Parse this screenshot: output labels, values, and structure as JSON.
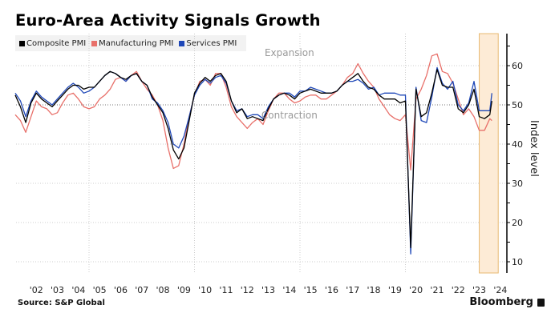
{
  "title": "Euro-Area Activity Signals Growth",
  "source": "Source: S&P Global",
  "brand": "Bloomberg",
  "chart_data": {
    "type": "line",
    "title": "Euro-Area Activity Signals Growth",
    "xlabel": "",
    "ylabel": "Index level",
    "ylim": [
      7,
      68
    ],
    "xlim": [
      2001.5,
      2024.4
    ],
    "yticks": [
      10,
      20,
      30,
      40,
      50,
      60
    ],
    "xtick_labels": [
      "'02",
      "'03",
      "'04",
      "'05",
      "'06",
      "'07",
      "'08",
      "'09",
      "'10",
      "'11",
      "'12",
      "'13",
      "'14",
      "'15",
      "'16",
      "'17",
      "'18",
      "'19",
      "'20",
      "'21",
      "'22",
      "'23",
      "'24"
    ],
    "legend_position": "top-left",
    "reference_line": 50,
    "annotations": [
      {
        "text": "Expansion",
        "x": 2014.5,
        "y": 62.5
      },
      {
        "text": "Contraction",
        "x": 2014.5,
        "y": 46.5
      }
    ],
    "shaded_region": {
      "from": 2023.5,
      "to": 2024.4,
      "color": "#fdebd6",
      "edge": "#e8b972"
    },
    "x": [
      2001.5,
      2001.75,
      2002.0,
      2002.25,
      2002.5,
      2002.75,
      2003.0,
      2003.25,
      2003.5,
      2003.75,
      2004.0,
      2004.25,
      2004.5,
      2004.75,
      2005.0,
      2005.25,
      2005.5,
      2005.75,
      2006.0,
      2006.25,
      2006.5,
      2006.75,
      2007.0,
      2007.25,
      2007.5,
      2007.75,
      2008.0,
      2008.25,
      2008.5,
      2008.75,
      2009.0,
      2009.25,
      2009.5,
      2009.75,
      2010.0,
      2010.25,
      2010.5,
      2010.75,
      2011.0,
      2011.25,
      2011.5,
      2011.75,
      2012.0,
      2012.25,
      2012.5,
      2012.75,
      2013.0,
      2013.25,
      2013.5,
      2013.75,
      2014.0,
      2014.25,
      2014.5,
      2014.75,
      2015.0,
      2015.25,
      2015.5,
      2015.75,
      2016.0,
      2016.25,
      2016.5,
      2016.75,
      2017.0,
      2017.25,
      2017.5,
      2017.75,
      2018.0,
      2018.25,
      2018.5,
      2018.75,
      2019.0,
      2019.25,
      2019.5,
      2019.75,
      2020.0,
      2020.25,
      2020.5,
      2020.75,
      2021.0,
      2021.25,
      2021.5,
      2021.75,
      2022.0,
      2022.25,
      2022.5,
      2022.75,
      2023.0,
      2023.25,
      2023.5,
      2023.75,
      2024.0,
      2024.1
    ],
    "series": [
      {
        "name": "Composite PMI",
        "color": "#000000",
        "values": [
          52.5,
          49.5,
          45.5,
          50.5,
          53.0,
          51.5,
          50.5,
          49.5,
          51.0,
          52.5,
          54.0,
          55.0,
          55.0,
          54.0,
          54.5,
          54.5,
          56.0,
          57.5,
          58.5,
          58.0,
          57.0,
          56.5,
          57.5,
          58.0,
          56.0,
          55.0,
          52.0,
          50.0,
          48.0,
          44.0,
          38.5,
          36.2,
          39.0,
          46.0,
          53.0,
          55.5,
          57.0,
          56.0,
          57.5,
          58.0,
          56.0,
          51.0,
          48.0,
          49.0,
          46.5,
          47.0,
          46.5,
          46.0,
          49.0,
          51.5,
          52.5,
          53.0,
          52.5,
          51.5,
          53.0,
          53.5,
          54.0,
          53.5,
          53.0,
          53.0,
          53.0,
          53.5,
          55.0,
          56.0,
          57.0,
          58.0,
          56.0,
          54.5,
          54.0,
          52.5,
          51.5,
          51.5,
          51.5,
          50.5,
          51.0,
          13.6,
          54.0,
          47.0,
          48.0,
          53.0,
          59.0,
          55.0,
          54.5,
          54.5,
          49.0,
          48.0,
          50.0,
          54.0,
          47.0,
          46.5,
          47.5,
          51.0
        ]
      },
      {
        "name": "Manufacturing PMI",
        "color": "#e8706a",
        "values": [
          47.5,
          46.0,
          43.0,
          47.0,
          51.0,
          49.5,
          49.0,
          47.5,
          48.0,
          50.5,
          52.5,
          53.0,
          51.5,
          49.5,
          49.0,
          49.5,
          51.5,
          52.5,
          54.0,
          56.5,
          57.0,
          56.0,
          57.5,
          58.5,
          56.0,
          54.0,
          52.5,
          50.0,
          46.0,
          39.0,
          33.8,
          34.5,
          40.0,
          47.0,
          52.5,
          56.0,
          56.5,
          55.0,
          58.0,
          58.0,
          54.5,
          49.5,
          47.0,
          45.5,
          44.0,
          45.5,
          46.5,
          45.0,
          48.5,
          51.5,
          53.0,
          53.0,
          51.5,
          50.5,
          51.0,
          52.0,
          52.5,
          52.5,
          51.5,
          51.5,
          52.5,
          53.5,
          55.0,
          57.0,
          58.0,
          60.5,
          58.0,
          56.0,
          54.5,
          51.5,
          49.5,
          47.5,
          46.5,
          46.0,
          47.5,
          33.4,
          51.5,
          54.0,
          57.5,
          62.5,
          63.0,
          58.5,
          58.0,
          55.5,
          51.5,
          47.5,
          49.0,
          47.0,
          43.5,
          43.5,
          46.5,
          46.0
        ]
      },
      {
        "name": "Services PMI",
        "color": "#1f48b8",
        "values": [
          53.0,
          51.0,
          47.0,
          51.0,
          53.5,
          52.0,
          51.0,
          50.0,
          51.5,
          53.0,
          54.5,
          55.5,
          54.5,
          53.0,
          53.5,
          54.5,
          56.0,
          57.5,
          58.5,
          58.0,
          57.0,
          56.0,
          57.5,
          58.0,
          56.0,
          55.0,
          51.5,
          50.5,
          48.5,
          45.5,
          40.0,
          39.0,
          42.0,
          47.0,
          52.5,
          55.0,
          56.5,
          55.5,
          57.0,
          57.5,
          55.5,
          51.0,
          48.5,
          49.0,
          47.0,
          47.5,
          47.5,
          46.5,
          49.5,
          51.5,
          52.5,
          53.0,
          53.0,
          52.0,
          53.5,
          53.5,
          54.5,
          54.0,
          53.5,
          53.0,
          53.0,
          53.5,
          55.0,
          56.0,
          56.0,
          56.5,
          55.5,
          54.0,
          54.5,
          52.5,
          53.0,
          53.0,
          53.0,
          52.5,
          52.5,
          12.0,
          54.5,
          46.0,
          45.5,
          52.0,
          59.5,
          55.5,
          54.0,
          56.0,
          50.0,
          48.5,
          50.5,
          56.0,
          48.5,
          48.5,
          48.5,
          53.0
        ]
      }
    ]
  }
}
